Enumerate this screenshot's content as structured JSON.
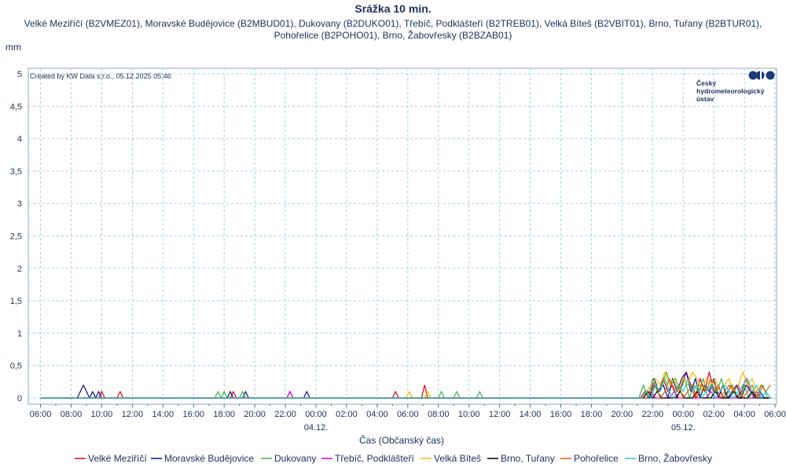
{
  "chart_data": {
    "type": "line",
    "title": "Srážka 10 min.",
    "subtitle_lines": [
      "Velké Meziříčí (B2VMEZ01), Moravské Budějovice (B2MBUD01), Dukovany (B2DUKO01), Třebíč, Podklášteří (B2TREB01), Velká Bíteš (B2VBIT01), Brno, Tuřany (B2BTUR01),",
      "Pohořelice (B2POHO01), Brno, Žabovřesky (B2BZAB01)"
    ],
    "ylabel": "mm",
    "xlabel": "Čas (Občanský čas)",
    "credit": "Created by KW Data s.r.o., 05.12.2025 05:46",
    "logo_text": [
      "Český",
      "hydrometeorologický",
      "ústav"
    ],
    "ylim": [
      0,
      5
    ],
    "y_ticks": [
      "0",
      "0,5",
      "1",
      "1,5",
      "2",
      "2,5",
      "3",
      "3,5",
      "4",
      "4,5",
      "5"
    ],
    "x_range_hours": [
      5.2,
      54.1
    ],
    "x_ticks": [
      {
        "h": 6,
        "label": "06:00"
      },
      {
        "h": 8,
        "label": "08:00"
      },
      {
        "h": 10,
        "label": "10:00"
      },
      {
        "h": 12,
        "label": "12:00"
      },
      {
        "h": 14,
        "label": "14:00"
      },
      {
        "h": 16,
        "label": "16:00"
      },
      {
        "h": 18,
        "label": "18:00"
      },
      {
        "h": 20,
        "label": "20:00"
      },
      {
        "h": 22,
        "label": "22:00"
      },
      {
        "h": 24,
        "label": "00:00"
      },
      {
        "h": 26,
        "label": "02:00"
      },
      {
        "h": 28,
        "label": "04:00"
      },
      {
        "h": 30,
        "label": "06:00"
      },
      {
        "h": 32,
        "label": "08:00"
      },
      {
        "h": 34,
        "label": "10:00"
      },
      {
        "h": 36,
        "label": "12:00"
      },
      {
        "h": 38,
        "label": "14:00"
      },
      {
        "h": 40,
        "label": "16:00"
      },
      {
        "h": 42,
        "label": "18:00"
      },
      {
        "h": 44,
        "label": "20:00"
      },
      {
        "h": 46,
        "label": "22:00"
      },
      {
        "h": 48,
        "label": "00:00"
      },
      {
        "h": 50,
        "label": "02:00"
      },
      {
        "h": 52,
        "label": "04:00"
      },
      {
        "h": 54,
        "label": "06:00"
      }
    ],
    "date_labels": [
      {
        "h": 24,
        "label": "04.12."
      },
      {
        "h": 48,
        "label": "05.12."
      }
    ],
    "grid": true,
    "legend_position": "bottom",
    "series": [
      {
        "name": "Velké Meziříčí",
        "color": "#e8000b",
        "points": [
          [
            6,
            0
          ],
          [
            9.8,
            0
          ],
          [
            10,
            0.1
          ],
          [
            10.2,
            0
          ],
          [
            11,
            0
          ],
          [
            11.2,
            0.1
          ],
          [
            11.4,
            0
          ],
          [
            18.4,
            0
          ],
          [
            18.6,
            0.1
          ],
          [
            18.8,
            0
          ],
          [
            29,
            0
          ],
          [
            29.2,
            0.1
          ],
          [
            29.4,
            0
          ],
          [
            30.9,
            0
          ],
          [
            31.1,
            0.2
          ],
          [
            31.3,
            0
          ],
          [
            45.2,
            0
          ],
          [
            45.5,
            0.1
          ],
          [
            45.8,
            0
          ],
          [
            46.1,
            0.2
          ],
          [
            46.4,
            0.1
          ],
          [
            46.7,
            0.3
          ],
          [
            47,
            0.1
          ],
          [
            47.3,
            0.2
          ],
          [
            47.6,
            0
          ],
          [
            47.9,
            0.2
          ],
          [
            48.2,
            0.4
          ],
          [
            48.5,
            0.2
          ],
          [
            48.8,
            0
          ],
          [
            49.1,
            0.3
          ],
          [
            49.4,
            0.1
          ],
          [
            49.7,
            0.4
          ],
          [
            50,
            0.1
          ],
          [
            50.3,
            0.2
          ],
          [
            50.6,
            0
          ],
          [
            50.9,
            0.1
          ],
          [
            51.2,
            0.2
          ],
          [
            51.5,
            0
          ],
          [
            51.8,
            0.1
          ],
          [
            52.1,
            0.3
          ],
          [
            52.4,
            0.1
          ],
          [
            52.7,
            0
          ],
          [
            53,
            0.1
          ],
          [
            53.3,
            0
          ],
          [
            53.6,
            0
          ]
        ]
      },
      {
        "name": "Moravské Budějovice",
        "color": "#0a0f8a",
        "points": [
          [
            6,
            0
          ],
          [
            8.4,
            0
          ],
          [
            8.6,
            0.1
          ],
          [
            8.8,
            0.2
          ],
          [
            9,
            0.1
          ],
          [
            9.2,
            0
          ],
          [
            9.4,
            0.1
          ],
          [
            9.6,
            0
          ],
          [
            9.8,
            0.1
          ],
          [
            10,
            0
          ],
          [
            18.2,
            0
          ],
          [
            18.4,
            0.1
          ],
          [
            18.6,
            0
          ],
          [
            19.2,
            0
          ],
          [
            19.4,
            0.1
          ],
          [
            19.6,
            0
          ],
          [
            22.1,
            0
          ],
          [
            22.3,
            0.1
          ],
          [
            22.5,
            0
          ],
          [
            23.2,
            0
          ],
          [
            23.4,
            0.1
          ],
          [
            23.6,
            0
          ],
          [
            45.8,
            0
          ],
          [
            46.1,
            0.3
          ],
          [
            46.4,
            0.1
          ],
          [
            46.7,
            0.2
          ],
          [
            47,
            0
          ],
          [
            47.3,
            0.3
          ],
          [
            47.6,
            0.1
          ],
          [
            47.9,
            0.3
          ],
          [
            48.2,
            0.4
          ],
          [
            48.5,
            0.1
          ],
          [
            48.8,
            0.3
          ],
          [
            49.1,
            0
          ],
          [
            49.4,
            0.2
          ],
          [
            49.7,
            0.1
          ],
          [
            50,
            0.3
          ],
          [
            50.3,
            0
          ],
          [
            50.6,
            0.2
          ],
          [
            50.9,
            0
          ],
          [
            51.2,
            0.1
          ],
          [
            51.5,
            0.2
          ],
          [
            51.8,
            0
          ],
          [
            52.1,
            0.2
          ],
          [
            52.4,
            0.1
          ],
          [
            52.7,
            0
          ],
          [
            53,
            0.1
          ],
          [
            53.3,
            0
          ],
          [
            53.6,
            0
          ]
        ]
      },
      {
        "name": "Dukovany",
        "color": "#3cb44b",
        "points": [
          [
            6,
            0
          ],
          [
            17.4,
            0
          ],
          [
            17.6,
            0.1
          ],
          [
            17.8,
            0
          ],
          [
            18,
            0.1
          ],
          [
            18.2,
            0
          ],
          [
            19,
            0
          ],
          [
            19.2,
            0.1
          ],
          [
            19.4,
            0
          ],
          [
            33,
            0
          ],
          [
            33.2,
            0.1
          ],
          [
            33.4,
            0
          ],
          [
            32,
            0
          ],
          [
            32.2,
            0.1
          ],
          [
            32.4,
            0
          ],
          [
            34.5,
            0
          ],
          [
            34.7,
            0.1
          ],
          [
            34.9,
            0
          ],
          [
            45.1,
            0
          ],
          [
            45.4,
            0.2
          ],
          [
            45.7,
            0
          ],
          [
            46,
            0.3
          ],
          [
            46.3,
            0.1
          ],
          [
            46.6,
            0.2
          ],
          [
            46.9,
            0.4
          ],
          [
            47.2,
            0.2
          ],
          [
            47.5,
            0.3
          ],
          [
            47.8,
            0.1
          ],
          [
            48.1,
            0.3
          ],
          [
            48.4,
            0
          ],
          [
            48.7,
            0.2
          ],
          [
            49,
            0.1
          ],
          [
            49.3,
            0.3
          ],
          [
            49.6,
            0
          ],
          [
            49.9,
            0.2
          ],
          [
            50.2,
            0.1
          ],
          [
            50.5,
            0.3
          ],
          [
            50.8,
            0
          ],
          [
            51.1,
            0.2
          ],
          [
            51.4,
            0.1
          ],
          [
            51.7,
            0
          ],
          [
            52,
            0.2
          ],
          [
            52.3,
            0
          ],
          [
            52.6,
            0.1
          ],
          [
            52.9,
            0
          ],
          [
            53.2,
            0.2
          ],
          [
            53.5,
            0
          ],
          [
            53.8,
            0
          ]
        ]
      },
      {
        "name": "Třebíč, Podklášteří",
        "color": "#e000c8",
        "points": [
          [
            6,
            0
          ],
          [
            22.1,
            0
          ],
          [
            22.3,
            0.1
          ],
          [
            22.5,
            0
          ],
          [
            45.6,
            0
          ],
          [
            45.9,
            0.1
          ],
          [
            46.2,
            0
          ],
          [
            47.1,
            0
          ],
          [
            47.4,
            0.1
          ],
          [
            47.7,
            0
          ],
          [
            49.5,
            0
          ],
          [
            49.8,
            0.1
          ],
          [
            50.1,
            0
          ],
          [
            52.5,
            0
          ],
          [
            52.8,
            0.1
          ],
          [
            53.1,
            0
          ],
          [
            53.6,
            0
          ]
        ]
      },
      {
        "name": "Velká Bíteš",
        "color": "#f5b800",
        "points": [
          [
            6,
            0
          ],
          [
            29.9,
            0
          ],
          [
            30.1,
            0.1
          ],
          [
            30.3,
            0
          ],
          [
            31.1,
            0
          ],
          [
            31.3,
            0.1
          ],
          [
            31.5,
            0
          ],
          [
            45.3,
            0
          ],
          [
            45.6,
            0.1
          ],
          [
            45.9,
            0.2
          ],
          [
            46.2,
            0.3
          ],
          [
            46.5,
            0.2
          ],
          [
            46.8,
            0.4
          ],
          [
            47.1,
            0.2
          ],
          [
            47.4,
            0.3
          ],
          [
            47.7,
            0.1
          ],
          [
            48,
            0.3
          ],
          [
            48.3,
            0.2
          ],
          [
            48.6,
            0.4
          ],
          [
            48.9,
            0.3
          ],
          [
            49.2,
            0.1
          ],
          [
            49.5,
            0.3
          ],
          [
            49.8,
            0.2
          ],
          [
            50.1,
            0.3
          ],
          [
            50.4,
            0.1
          ],
          [
            50.7,
            0.2
          ],
          [
            51,
            0.3
          ],
          [
            51.3,
            0.1
          ],
          [
            51.6,
            0.2
          ],
          [
            51.9,
            0.4
          ],
          [
            52.2,
            0.2
          ],
          [
            52.5,
            0.3
          ],
          [
            52.8,
            0.1
          ],
          [
            53.1,
            0.2
          ],
          [
            53.4,
            0.1
          ],
          [
            53.7,
            0
          ]
        ]
      },
      {
        "name": "Brno, Tuřany",
        "color": "#000000",
        "points": [
          [
            6,
            0
          ],
          [
            45.4,
            0
          ],
          [
            45.7,
            0.1
          ],
          [
            46,
            0
          ],
          [
            46.3,
            0.1
          ],
          [
            46.6,
            0
          ],
          [
            47.5,
            0
          ],
          [
            47.8,
            0.1
          ],
          [
            48.1,
            0
          ],
          [
            48.6,
            0
          ],
          [
            48.9,
            0.1
          ],
          [
            49.2,
            0
          ],
          [
            49.8,
            0
          ],
          [
            50.1,
            0.1
          ],
          [
            50.4,
            0
          ],
          [
            51,
            0
          ],
          [
            51.3,
            0.1
          ],
          [
            51.6,
            0
          ],
          [
            52.2,
            0
          ],
          [
            52.5,
            0.1
          ],
          [
            52.8,
            0
          ],
          [
            53.6,
            0
          ]
        ]
      },
      {
        "name": "Pohořelice",
        "color": "#d9600b",
        "points": [
          [
            6,
            0
          ],
          [
            45.6,
            0
          ],
          [
            45.9,
            0.1
          ],
          [
            46.2,
            0.2
          ],
          [
            46.5,
            0
          ],
          [
            46.8,
            0.1
          ],
          [
            47.1,
            0.3
          ],
          [
            47.4,
            0.1
          ],
          [
            47.7,
            0.2
          ],
          [
            48,
            0
          ],
          [
            48.3,
            0.1
          ],
          [
            48.6,
            0.2
          ],
          [
            48.9,
            0
          ],
          [
            49.2,
            0.2
          ],
          [
            49.5,
            0.1
          ],
          [
            49.8,
            0.3
          ],
          [
            50.1,
            0.2
          ],
          [
            50.4,
            0
          ],
          [
            50.7,
            0.1
          ],
          [
            51,
            0.2
          ],
          [
            51.3,
            0.1
          ],
          [
            51.6,
            0.2
          ],
          [
            51.9,
            0
          ],
          [
            52.2,
            0.1
          ],
          [
            52.5,
            0.2
          ],
          [
            52.8,
            0
          ],
          [
            53.1,
            0.2
          ],
          [
            53.4,
            0.1
          ],
          [
            53.7,
            0.2
          ]
        ]
      },
      {
        "name": "Brno, Žabovřesky",
        "color": "#2ec7d6",
        "points": [
          [
            6,
            0
          ],
          [
            45.3,
            0
          ],
          [
            45.6,
            0.1
          ],
          [
            45.9,
            0
          ],
          [
            46.2,
            0.2
          ],
          [
            46.5,
            0.1
          ],
          [
            46.8,
            0.3
          ],
          [
            47.1,
            0.1
          ],
          [
            47.4,
            0
          ],
          [
            47.7,
            0.2
          ],
          [
            48,
            0.1
          ],
          [
            48.3,
            0.3
          ],
          [
            48.6,
            0.1
          ],
          [
            48.9,
            0.2
          ],
          [
            49.2,
            0
          ],
          [
            49.5,
            0.1
          ],
          [
            49.8,
            0.2
          ],
          [
            50.1,
            0
          ],
          [
            50.4,
            0.1
          ],
          [
            50.7,
            0.2
          ],
          [
            51,
            0.1
          ],
          [
            51.3,
            0
          ],
          [
            51.6,
            0.1
          ],
          [
            51.9,
            0.2
          ],
          [
            52.2,
            0.3
          ],
          [
            52.5,
            0.1
          ],
          [
            52.8,
            0.2
          ],
          [
            53.1,
            0
          ],
          [
            53.4,
            0.1
          ],
          [
            53.7,
            0
          ]
        ]
      }
    ]
  }
}
